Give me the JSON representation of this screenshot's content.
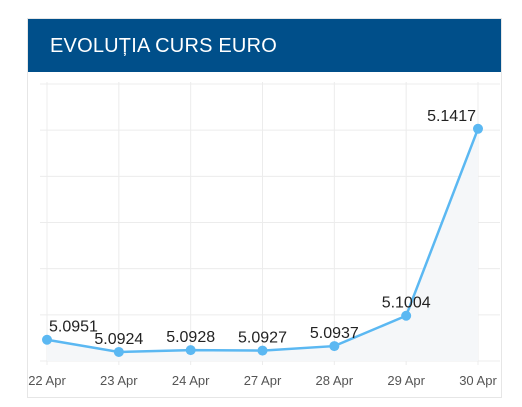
{
  "header": {
    "title": "EVOLUȚIA CURS EURO"
  },
  "colors": {
    "header_bg": "#004f8a",
    "series": "#5bb8f2",
    "area": "#f5f7f9"
  },
  "chart_data": {
    "type": "line",
    "title": "",
    "xlabel": "",
    "ylabel": "",
    "categories": [
      "22 Apr",
      "23 Apr",
      "24 Apr",
      "27 Apr",
      "28 Apr",
      "29 Apr",
      "30 Apr"
    ],
    "series": [
      {
        "values": [
          5.0951,
          5.0924,
          5.0928,
          5.0927,
          5.0937,
          5.1004,
          5.1417
        ],
        "labels": [
          "5.0951",
          "5.0924",
          "5.0928",
          "5.0927",
          "5.0937",
          "5.1004",
          "5.1417"
        ]
      }
    ],
    "ylim": [
      5.0904,
      5.1516
    ],
    "grid": true,
    "legend": "none"
  }
}
